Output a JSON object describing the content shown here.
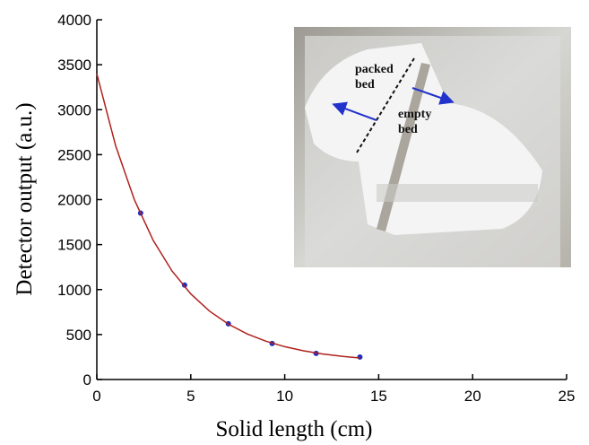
{
  "chart_data": {
    "type": "scatter",
    "xlabel": "Solid length (cm)",
    "ylabel": "Detector output (a.u.)",
    "xlim": [
      0,
      25
    ],
    "ylim": [
      0,
      4000
    ],
    "xticks": [
      0,
      5,
      10,
      15,
      20,
      25
    ],
    "yticks": [
      0,
      500,
      1000,
      1500,
      2000,
      2500,
      3000,
      3500,
      4000
    ],
    "series": [
      {
        "mode": "markers",
        "color": "#1c2fc4",
        "x": [
          2.33,
          4.67,
          7,
          9.33,
          11.67,
          14
        ],
        "values": [
          1850,
          1050,
          620,
          400,
          290,
          250
        ]
      },
      {
        "mode": "line",
        "color": "#b0201c",
        "x": [
          0,
          1,
          2,
          3,
          4,
          5,
          6,
          7,
          8,
          9,
          10,
          11,
          12,
          13,
          14
        ],
        "values": [
          3400,
          2600,
          1998,
          1547,
          1207,
          952,
          760,
          616,
          507,
          426,
          365,
          319,
          284,
          259,
          239
        ]
      }
    ],
    "annotations": [
      "packed",
      "bed",
      "empty",
      "bed"
    ]
  }
}
